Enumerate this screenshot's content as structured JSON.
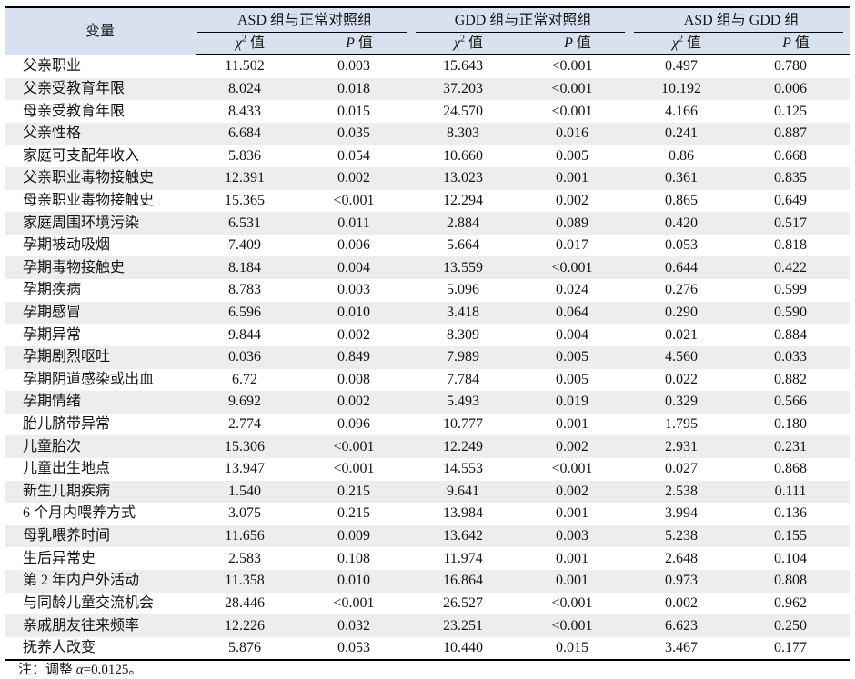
{
  "colors": {
    "header_bg": "#d8e1ef",
    "stripe_bg": "#ebedee",
    "border": "#000000"
  },
  "table": {
    "variable_header": "变量",
    "groups": [
      {
        "label": "ASD 组与正常对照组"
      },
      {
        "label": "GDD 组与正常对照组"
      },
      {
        "label": "ASD 组与 GDD 组"
      }
    ],
    "subheaders": {
      "chi": "χ",
      "chi_sup": "2",
      "chi_suffix": " 值",
      "p": "P",
      "p_suffix": " 值"
    },
    "rows": [
      {
        "variable": "父亲职业",
        "values": [
          "11.502",
          "0.003",
          "15.643",
          "<0.001",
          "0.497",
          "0.780"
        ]
      },
      {
        "variable": "父亲受教育年限",
        "values": [
          "8.024",
          "0.018",
          "37.203",
          "<0.001",
          "10.192",
          "0.006"
        ]
      },
      {
        "variable": "母亲受教育年限",
        "values": [
          "8.433",
          "0.015",
          "24.570",
          "<0.001",
          "4.166",
          "0.125"
        ]
      },
      {
        "variable": "父亲性格",
        "values": [
          "6.684",
          "0.035",
          "8.303",
          "0.016",
          "0.241",
          "0.887"
        ]
      },
      {
        "variable": "家庭可支配年收入",
        "values": [
          "5.836",
          "0.054",
          "10.660",
          "0.005",
          "0.86",
          "0.668"
        ]
      },
      {
        "variable": "父亲职业毒物接触史",
        "values": [
          "12.391",
          "0.002",
          "13.023",
          "0.001",
          "0.361",
          "0.835"
        ]
      },
      {
        "variable": "母亲职业毒物接触史",
        "values": [
          "15.365",
          "<0.001",
          "12.294",
          "0.002",
          "0.865",
          "0.649"
        ]
      },
      {
        "variable": "家庭周围环境污染",
        "values": [
          "6.531",
          "0.011",
          "2.884",
          "0.089",
          "0.420",
          "0.517"
        ]
      },
      {
        "variable": "孕期被动吸烟",
        "values": [
          "7.409",
          "0.006",
          "5.664",
          "0.017",
          "0.053",
          "0.818"
        ]
      },
      {
        "variable": "孕期毒物接触史",
        "values": [
          "8.184",
          "0.004",
          "13.559",
          "<0.001",
          "0.644",
          "0.422"
        ]
      },
      {
        "variable": "孕期疾病",
        "values": [
          "8.783",
          "0.003",
          "5.096",
          "0.024",
          "0.276",
          "0.599"
        ]
      },
      {
        "variable": "孕期感冒",
        "values": [
          "6.596",
          "0.010",
          "3.418",
          "0.064",
          "0.290",
          "0.590"
        ]
      },
      {
        "variable": "孕期异常",
        "values": [
          "9.844",
          "0.002",
          "8.309",
          "0.004",
          "0.021",
          "0.884"
        ]
      },
      {
        "variable": "孕期剧烈呕吐",
        "values": [
          "0.036",
          "0.849",
          "7.989",
          "0.005",
          "4.560",
          "0.033"
        ]
      },
      {
        "variable": "孕期阴道感染或出血",
        "values": [
          "6.72",
          "0.008",
          "7.784",
          "0.005",
          "0.022",
          "0.882"
        ]
      },
      {
        "variable": "孕期情绪",
        "values": [
          "9.692",
          "0.002",
          "5.493",
          "0.019",
          "0.329",
          "0.566"
        ]
      },
      {
        "variable": "胎儿脐带异常",
        "values": [
          "2.774",
          "0.096",
          "10.777",
          "0.001",
          "1.795",
          "0.180"
        ]
      },
      {
        "variable": "儿童胎次",
        "values": [
          "15.306",
          "<0.001",
          "12.249",
          "0.002",
          "2.931",
          "0.231"
        ]
      },
      {
        "variable": "儿童出生地点",
        "values": [
          "13.947",
          "<0.001",
          "14.553",
          "<0.001",
          "0.027",
          "0.868"
        ]
      },
      {
        "variable": "新生儿期疾病",
        "values": [
          "1.540",
          "0.215",
          "9.641",
          "0.002",
          "2.538",
          "0.111"
        ]
      },
      {
        "variable": "6 个月内喂养方式",
        "values": [
          "3.075",
          "0.215",
          "13.984",
          "0.001",
          "3.994",
          "0.136"
        ]
      },
      {
        "variable": "母乳喂养时间",
        "values": [
          "11.656",
          "0.009",
          "13.642",
          "0.003",
          "5.238",
          "0.155"
        ]
      },
      {
        "variable": "生后异常史",
        "values": [
          "2.583",
          "0.108",
          "11.974",
          "0.001",
          "2.648",
          "0.104"
        ]
      },
      {
        "variable": "第 2 年内户外活动",
        "values": [
          "11.358",
          "0.010",
          "16.864",
          "0.001",
          "0.973",
          "0.808"
        ]
      },
      {
        "variable": "与同龄儿童交流机会",
        "values": [
          "28.446",
          "<0.001",
          "26.527",
          "<0.001",
          "0.002",
          "0.962"
        ]
      },
      {
        "variable": "亲戚朋友往来频率",
        "values": [
          "12.226",
          "0.032",
          "23.251",
          "<0.001",
          "6.623",
          "0.250"
        ]
      },
      {
        "variable": "抚养人改变",
        "values": [
          "5.876",
          "0.053",
          "10.440",
          "0.015",
          "3.467",
          "0.177"
        ]
      }
    ],
    "note": {
      "prefix": "注：调整 ",
      "alpha": "α",
      "suffix": "=0.0125。"
    }
  }
}
